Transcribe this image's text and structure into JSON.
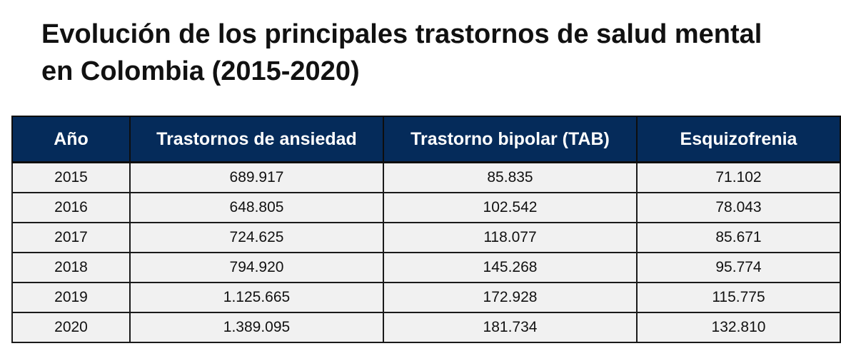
{
  "title": "Evolución de los principales trastornos de salud mental en Colombia (2015-2020)",
  "colors": {
    "header_background": "#052b5a",
    "header_text": "#ffffff",
    "row_background": "#f1f1f1"
  },
  "chart_data": {
    "type": "table",
    "title": "Evolución de los principales trastornos de salud mental en Colombia (2015-2020)",
    "headers": [
      "Año",
      "Trastornos de ansiedad",
      "Trastorno bipolar (TAB)",
      "Esquizofrenia"
    ],
    "rows": [
      [
        "2015",
        "689.917",
        "85.835",
        "71.102"
      ],
      [
        "2016",
        "648.805",
        "102.542",
        "78.043"
      ],
      [
        "2017",
        "724.625",
        "118.077",
        "85.671"
      ],
      [
        "2018",
        "794.920",
        "145.268",
        "95.774"
      ],
      [
        "2019",
        "1.125.665",
        "172.928",
        "115.775"
      ],
      [
        "2020",
        "1.389.095",
        "181.734",
        "132.810"
      ]
    ]
  }
}
